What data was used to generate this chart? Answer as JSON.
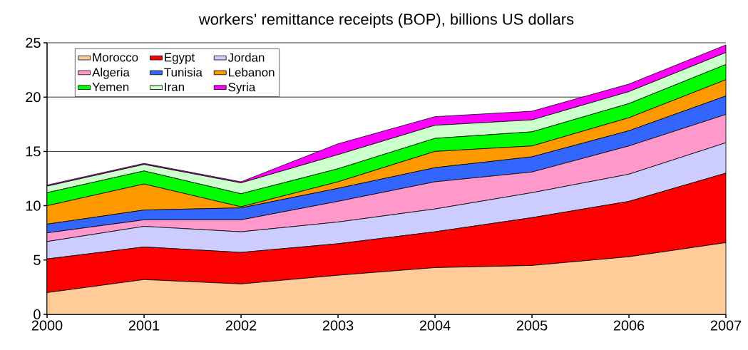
{
  "chart_data": {
    "type": "area",
    "stacked": true,
    "title": "workers’ remittance receipts (BOP), billions US dollars",
    "x": [
      2000,
      2001,
      2002,
      2003,
      2004,
      2005,
      2006,
      2007
    ],
    "xlim": [
      2000,
      2007
    ],
    "xticks": [
      2000,
      2001,
      2002,
      2003,
      2004,
      2005,
      2006,
      2007
    ],
    "ylim": [
      0,
      25
    ],
    "yticks": [
      0,
      5,
      10,
      15,
      20,
      25
    ],
    "grid": "y",
    "legend": "top left",
    "series": [
      {
        "name": "Morocco",
        "color": "#ffcc99",
        "values": [
          2.0,
          3.2,
          2.8,
          3.6,
          4.3,
          4.5,
          5.3,
          6.6
        ]
      },
      {
        "name": "Egypt",
        "color": "#ff0000",
        "values": [
          3.1,
          3.0,
          2.9,
          2.9,
          3.3,
          4.4,
          5.1,
          6.4
        ]
      },
      {
        "name": "Jordan",
        "color": "#ccccff",
        "values": [
          1.6,
          1.9,
          1.9,
          2.0,
          2.1,
          2.3,
          2.5,
          2.8
        ]
      },
      {
        "name": "Algeria",
        "color": "#ff99cc",
        "values": [
          0.8,
          0.6,
          1.1,
          1.9,
          2.5,
          1.9,
          2.6,
          2.6
        ]
      },
      {
        "name": "Tunisia",
        "color": "#3366ff",
        "values": [
          0.8,
          0.9,
          1.1,
          1.2,
          1.3,
          1.4,
          1.4,
          1.7
        ]
      },
      {
        "name": "Lebanon",
        "color": "#ff9900",
        "values": [
          1.7,
          2.4,
          0.1,
          0.6,
          1.5,
          1.0,
          1.2,
          1.5
        ]
      },
      {
        "name": "Yemen",
        "color": "#00ff00",
        "values": [
          1.2,
          1.2,
          1.2,
          1.2,
          1.2,
          1.3,
          1.3,
          1.4
        ]
      },
      {
        "name": "Iran",
        "color": "#ccffcc",
        "values": [
          0.6,
          0.6,
          1.0,
          1.3,
          1.2,
          1.1,
          1.1,
          1.1
        ]
      },
      {
        "name": "Syria",
        "color": "#ff00ff",
        "values": [
          0.1,
          0.1,
          0.1,
          1.0,
          0.8,
          0.8,
          0.7,
          0.7
        ]
      }
    ]
  }
}
